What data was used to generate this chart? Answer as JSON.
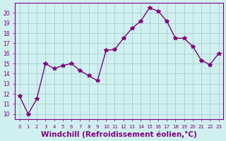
{
  "x": [
    0,
    1,
    2,
    3,
    4,
    5,
    6,
    7,
    8,
    9,
    10,
    11,
    12,
    13,
    14,
    15,
    16,
    17,
    18,
    19,
    20,
    21,
    22,
    23
  ],
  "y": [
    11.8,
    10.0,
    11.5,
    15.0,
    14.5,
    14.8,
    15.0,
    14.3,
    13.8,
    13.3,
    16.3,
    16.4,
    17.5,
    18.5,
    19.2,
    20.5,
    20.2,
    19.2,
    17.5,
    17.5,
    16.7,
    15.3,
    14.9,
    16.0
  ],
  "line_color": "#800080",
  "marker": "*",
  "marker_size": 4,
  "bg_color": "#d0f0f0",
  "grid_color": "#a0c8c8",
  "spine_color": "#800080",
  "tick_color": "#800080",
  "xlabel": "Windchill (Refroidissement éolien,°C)",
  "xlabel_fontsize": 7.5,
  "yticks": [
    10,
    11,
    12,
    13,
    14,
    15,
    16,
    17,
    18,
    19,
    20
  ],
  "xticks": [
    0,
    1,
    2,
    3,
    4,
    5,
    6,
    7,
    8,
    9,
    10,
    11,
    12,
    13,
    14,
    15,
    16,
    17,
    18,
    19,
    20,
    21,
    22,
    23
  ],
  "ylim_min": 9.5,
  "ylim_max": 21.0,
  "xlim_min": -0.5,
  "xlim_max": 23.5
}
